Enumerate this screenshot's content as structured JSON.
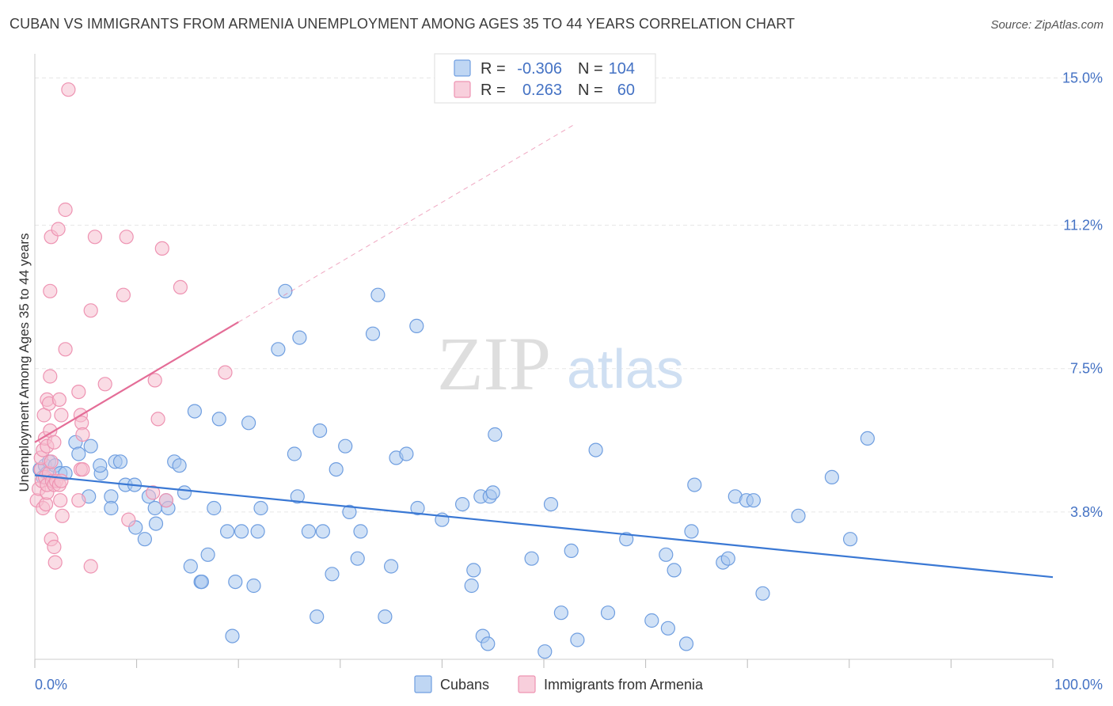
{
  "title": "CUBAN VS IMMIGRANTS FROM ARMENIA UNEMPLOYMENT AMONG AGES 35 TO 44 YEARS CORRELATION CHART",
  "source": "Source: ZipAtlas.com",
  "watermark": {
    "zip": "ZIP",
    "atlas": "atlas"
  },
  "colors": {
    "cubans_fill": "#a9c8ef",
    "cubans_stroke": "#6f9ee0",
    "cubans_line": "#3a78d4",
    "armenia_fill": "#f6bfd0",
    "armenia_stroke": "#ee93b2",
    "armenia_line": "#e46d97",
    "tick_text": "#4472c4",
    "grid": "#e6e6e6"
  },
  "stats": {
    "r_label": "R =",
    "n_label": "N =",
    "cubans": {
      "r": "-0.306",
      "n": "104"
    },
    "armenia": {
      "r": "0.263",
      "n": "60"
    }
  },
  "chart_data": {
    "type": "scatter",
    "title": "CUBAN VS IMMIGRANTS FROM ARMENIA UNEMPLOYMENT AMONG AGES 35 TO 44 YEARS CORRELATION CHART",
    "xlabel": "",
    "ylabel": "Unemployment Among Ages 35 to 44 years",
    "xlim": [
      0,
      100
    ],
    "ylim": [
      0,
      15.5
    ],
    "x_tick_labels": [
      "0.0%",
      "100.0%"
    ],
    "y_ticks": [
      3.8,
      7.5,
      11.2,
      15.0
    ],
    "y_tick_labels": [
      "3.8%",
      "7.5%",
      "11.2%",
      "15.0%"
    ],
    "grid": "horizontal dashed",
    "legend_position": "bottom-center",
    "series": [
      {
        "name": "Cubans",
        "trend": {
          "x": [
            0,
            100
          ],
          "y": [
            4.75,
            2.12
          ]
        },
        "points": [
          [
            0.5,
            4.9
          ],
          [
            0.8,
            4.7
          ],
          [
            1.0,
            5.0
          ],
          [
            1.2,
            4.8
          ],
          [
            1.4,
            5.1
          ],
          [
            2.0,
            5.0
          ],
          [
            2.5,
            4.8
          ],
          [
            3.0,
            4.8
          ],
          [
            5.5,
            5.5
          ],
          [
            4.0,
            5.6
          ],
          [
            4.3,
            5.3
          ],
          [
            5.3,
            4.2
          ],
          [
            6.5,
            4.8
          ],
          [
            6.4,
            5.0
          ],
          [
            7.5,
            4.2
          ],
          [
            7.5,
            3.9
          ],
          [
            7.9,
            5.1
          ],
          [
            8.4,
            5.1
          ],
          [
            8.9,
            4.5
          ],
          [
            9.8,
            4.5
          ],
          [
            9.9,
            3.4
          ],
          [
            10.8,
            3.1
          ],
          [
            11.2,
            4.2
          ],
          [
            11.8,
            3.9
          ],
          [
            11.9,
            3.5
          ],
          [
            12.9,
            4.1
          ],
          [
            13.1,
            3.9
          ],
          [
            13.7,
            5.1
          ],
          [
            14.2,
            5.0
          ],
          [
            14.7,
            4.3
          ],
          [
            15.3,
            2.4
          ],
          [
            15.7,
            6.4
          ],
          [
            16.3,
            2.0
          ],
          [
            16.4,
            2.0
          ],
          [
            17.0,
            2.7
          ],
          [
            17.6,
            3.9
          ],
          [
            18.1,
            6.2
          ],
          [
            18.9,
            3.3
          ],
          [
            19.4,
            0.6
          ],
          [
            19.7,
            2.0
          ],
          [
            20.3,
            3.3
          ],
          [
            21.0,
            6.1
          ],
          [
            21.5,
            1.9
          ],
          [
            21.9,
            3.3
          ],
          [
            22.2,
            3.9
          ],
          [
            23.9,
            8.0
          ],
          [
            24.6,
            9.5
          ],
          [
            25.5,
            5.3
          ],
          [
            25.8,
            4.2
          ],
          [
            26.0,
            8.3
          ],
          [
            26.9,
            3.3
          ],
          [
            27.7,
            1.1
          ],
          [
            28.0,
            5.9
          ],
          [
            28.3,
            3.3
          ],
          [
            29.2,
            2.2
          ],
          [
            29.6,
            4.9
          ],
          [
            30.5,
            5.5
          ],
          [
            30.9,
            3.8
          ],
          [
            31.7,
            2.6
          ],
          [
            32.0,
            3.3
          ],
          [
            33.2,
            8.4
          ],
          [
            33.7,
            9.4
          ],
          [
            34.4,
            1.1
          ],
          [
            35.0,
            2.4
          ],
          [
            35.5,
            5.2
          ],
          [
            36.5,
            5.3
          ],
          [
            37.5,
            8.6
          ],
          [
            37.6,
            3.9
          ],
          [
            40.0,
            3.6
          ],
          [
            42.0,
            4.0
          ],
          [
            42.9,
            1.9
          ],
          [
            43.1,
            2.3
          ],
          [
            43.8,
            4.2
          ],
          [
            44.0,
            0.6
          ],
          [
            44.5,
            0.4
          ],
          [
            44.7,
            4.2
          ],
          [
            45.0,
            4.3
          ],
          [
            45.2,
            5.8
          ],
          [
            48.8,
            2.6
          ],
          [
            50.1,
            0.2
          ],
          [
            50.7,
            4.0
          ],
          [
            51.7,
            1.2
          ],
          [
            52.7,
            2.8
          ],
          [
            53.3,
            0.5
          ],
          [
            55.1,
            5.4
          ],
          [
            56.3,
            1.2
          ],
          [
            58.1,
            3.1
          ],
          [
            60.6,
            1.0
          ],
          [
            62.0,
            2.7
          ],
          [
            62.2,
            0.8
          ],
          [
            62.8,
            2.3
          ],
          [
            64.0,
            0.4
          ],
          [
            64.5,
            3.3
          ],
          [
            64.8,
            4.5
          ],
          [
            67.6,
            2.5
          ],
          [
            68.1,
            2.6
          ],
          [
            68.8,
            4.2
          ],
          [
            69.9,
            4.1
          ],
          [
            70.6,
            4.1
          ],
          [
            71.5,
            1.7
          ],
          [
            75.0,
            3.7
          ],
          [
            78.3,
            4.7
          ],
          [
            80.1,
            3.1
          ],
          [
            81.8,
            5.7
          ]
        ]
      },
      {
        "name": "Immigrants from Armenia",
        "trend": {
          "x": [
            0,
            20
          ],
          "y": [
            5.6,
            8.7
          ]
        },
        "trend_extension": {
          "x": [
            20,
            53
          ],
          "y": [
            8.7,
            13.8
          ]
        },
        "points": [
          [
            0.2,
            4.1
          ],
          [
            0.4,
            4.4
          ],
          [
            0.6,
            4.9
          ],
          [
            0.6,
            5.2
          ],
          [
            0.7,
            4.6
          ],
          [
            0.8,
            5.4
          ],
          [
            0.8,
            3.9
          ],
          [
            0.9,
            6.3
          ],
          [
            1.0,
            5.7
          ],
          [
            1.0,
            4.7
          ],
          [
            1.1,
            4.0
          ],
          [
            1.2,
            5.5
          ],
          [
            1.2,
            4.3
          ],
          [
            1.2,
            4.5
          ],
          [
            1.2,
            6.7
          ],
          [
            1.4,
            6.6
          ],
          [
            1.4,
            4.8
          ],
          [
            1.5,
            5.9
          ],
          [
            1.6,
            5.1
          ],
          [
            1.6,
            10.9
          ],
          [
            1.5,
            9.5
          ],
          [
            1.5,
            7.3
          ],
          [
            1.6,
            3.1
          ],
          [
            1.7,
            4.6
          ],
          [
            1.9,
            4.5
          ],
          [
            1.9,
            5.6
          ],
          [
            1.9,
            2.9
          ],
          [
            2.0,
            2.5
          ],
          [
            2.1,
            4.6
          ],
          [
            2.3,
            11.1
          ],
          [
            2.4,
            6.7
          ],
          [
            2.4,
            4.5
          ],
          [
            2.5,
            4.1
          ],
          [
            2.6,
            4.6
          ],
          [
            2.7,
            3.7
          ],
          [
            2.6,
            6.3
          ],
          [
            3.0,
            8.0
          ],
          [
            3.0,
            11.6
          ],
          [
            3.3,
            14.7
          ],
          [
            4.3,
            4.1
          ],
          [
            4.3,
            6.9
          ],
          [
            4.5,
            6.3
          ],
          [
            4.5,
            4.9
          ],
          [
            4.6,
            6.1
          ],
          [
            4.7,
            4.9
          ],
          [
            4.7,
            5.8
          ],
          [
            5.5,
            9.0
          ],
          [
            5.5,
            2.4
          ],
          [
            5.9,
            10.9
          ],
          [
            6.9,
            7.1
          ],
          [
            8.7,
            9.4
          ],
          [
            9.0,
            10.9
          ],
          [
            9.2,
            3.6
          ],
          [
            11.6,
            4.3
          ],
          [
            11.8,
            7.2
          ],
          [
            12.1,
            6.2
          ],
          [
            12.5,
            10.6
          ],
          [
            12.9,
            4.1
          ],
          [
            14.3,
            9.6
          ],
          [
            18.7,
            7.4
          ]
        ]
      }
    ]
  },
  "legend": {
    "items": [
      "Cubans",
      "Immigrants from Armenia"
    ]
  }
}
